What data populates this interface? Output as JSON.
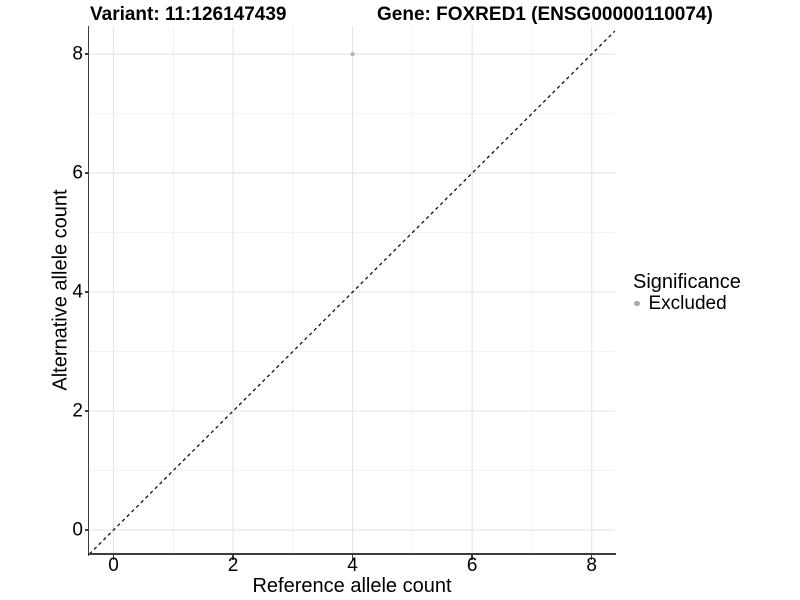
{
  "chart_data": {
    "type": "scatter",
    "titles": {
      "left": "Variant: 11:126147439",
      "right": "Gene: FOXRED1 (ENSG00000110074)"
    },
    "xlabel": "Reference allele count",
    "ylabel": "Alternative allele count",
    "xlim": [
      -0.41,
      8.39
    ],
    "ylim": [
      -0.403,
      8.473
    ],
    "x_ticks": [
      0,
      2,
      4,
      6,
      8
    ],
    "x_tick_labels": [
      "0",
      "2",
      "4",
      "6",
      "8"
    ],
    "y_ticks": [
      0,
      2,
      4,
      6,
      8
    ],
    "y_tick_labels": [
      "0",
      "2",
      "4",
      "6",
      "8"
    ],
    "x_minor_ticks": [
      1,
      3,
      5,
      7
    ],
    "y_minor_ticks": [
      1,
      3,
      5,
      7
    ],
    "grid": "major and minor gridlines, light gray on white",
    "reference_line": {
      "type": "identity y=x",
      "style": "dashed",
      "color": "#111111"
    },
    "series": [
      {
        "name": "Excluded",
        "marker": "circle",
        "color": "#b3b3b3",
        "points": [
          {
            "x": 4,
            "y": 8
          }
        ]
      }
    ],
    "legend": {
      "title": "Significance",
      "position": "right-center",
      "items": [
        {
          "label": "Excluded",
          "color": "#ababab"
        }
      ]
    }
  },
  "colors": {
    "background": "#ffffff",
    "grid_major": "#e7e7e7",
    "grid_minor": "#f2f2f2",
    "axis_line": "#3d3d3d",
    "tick_mark": "#3d3d3d",
    "text": "#000000"
  }
}
